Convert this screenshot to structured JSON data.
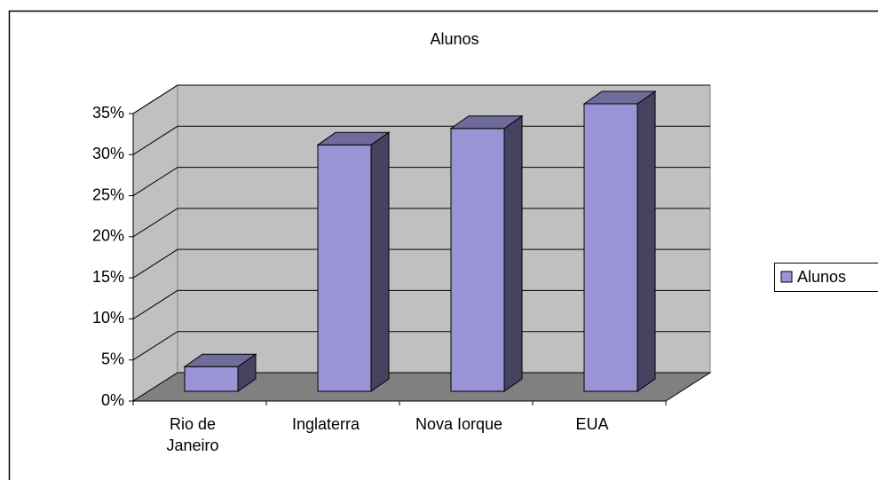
{
  "chart_data": {
    "type": "bar3d",
    "title": "Alunos",
    "categories": [
      "Rio de Janeiro",
      "Inglaterra",
      "Nova Iorque",
      "EUA"
    ],
    "series": [
      {
        "name": "Alunos",
        "color": "#9a94d6",
        "values": [
          3,
          30,
          32,
          35
        ]
      }
    ],
    "ylim": [
      0,
      35
    ],
    "yticks": [
      {
        "value": 0,
        "label": "0%"
      },
      {
        "value": 5,
        "label": "5%"
      },
      {
        "value": 10,
        "label": "10%"
      },
      {
        "value": 15,
        "label": "15%"
      },
      {
        "value": 20,
        "label": "20%"
      },
      {
        "value": 25,
        "label": "25%"
      },
      {
        "value": 30,
        "label": "30%"
      },
      {
        "value": 35,
        "label": "35%"
      }
    ],
    "grid": true,
    "legend": "right"
  }
}
